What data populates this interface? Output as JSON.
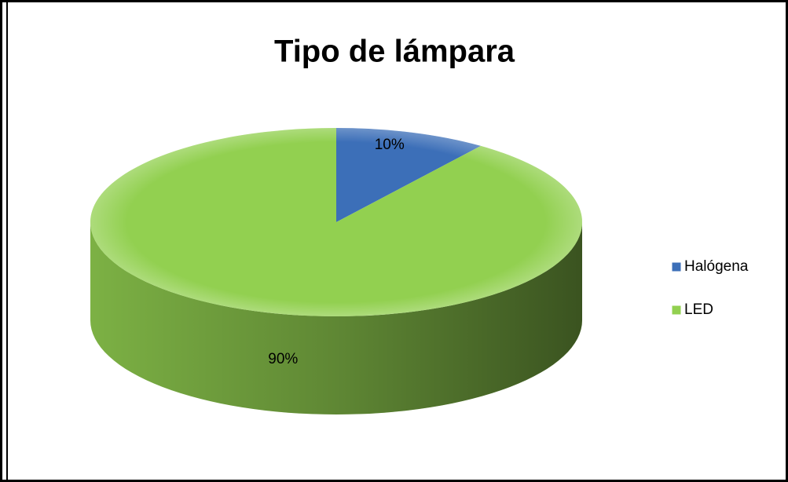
{
  "chart_data": {
    "type": "pie",
    "title": "Tipo de lámpara",
    "categories": [
      "Halógena",
      "LED"
    ],
    "values": [
      10,
      90
    ],
    "value_labels": [
      "10%",
      "90%"
    ],
    "colors": [
      "#3c6fb8",
      "#92d050"
    ],
    "legend": "right"
  }
}
